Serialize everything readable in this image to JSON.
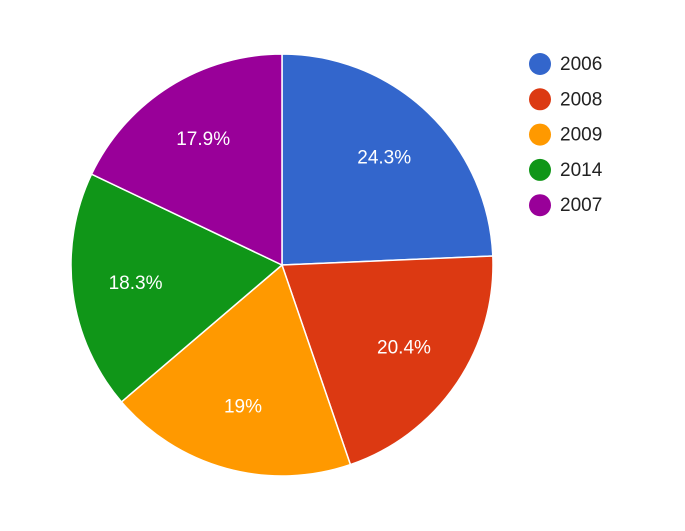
{
  "chart_data": {
    "type": "pie",
    "categories": [
      "2006",
      "2008",
      "2009",
      "2014",
      "2007"
    ],
    "values": [
      24.3,
      20.4,
      19,
      18.3,
      17.9
    ],
    "value_labels": [
      "24.3%",
      "20.4%",
      "19%",
      "18.3%",
      "17.9%"
    ],
    "colors": [
      "#3366cc",
      "#dc3912",
      "#ff9900",
      "#109618",
      "#990099"
    ],
    "legend": "right"
  }
}
